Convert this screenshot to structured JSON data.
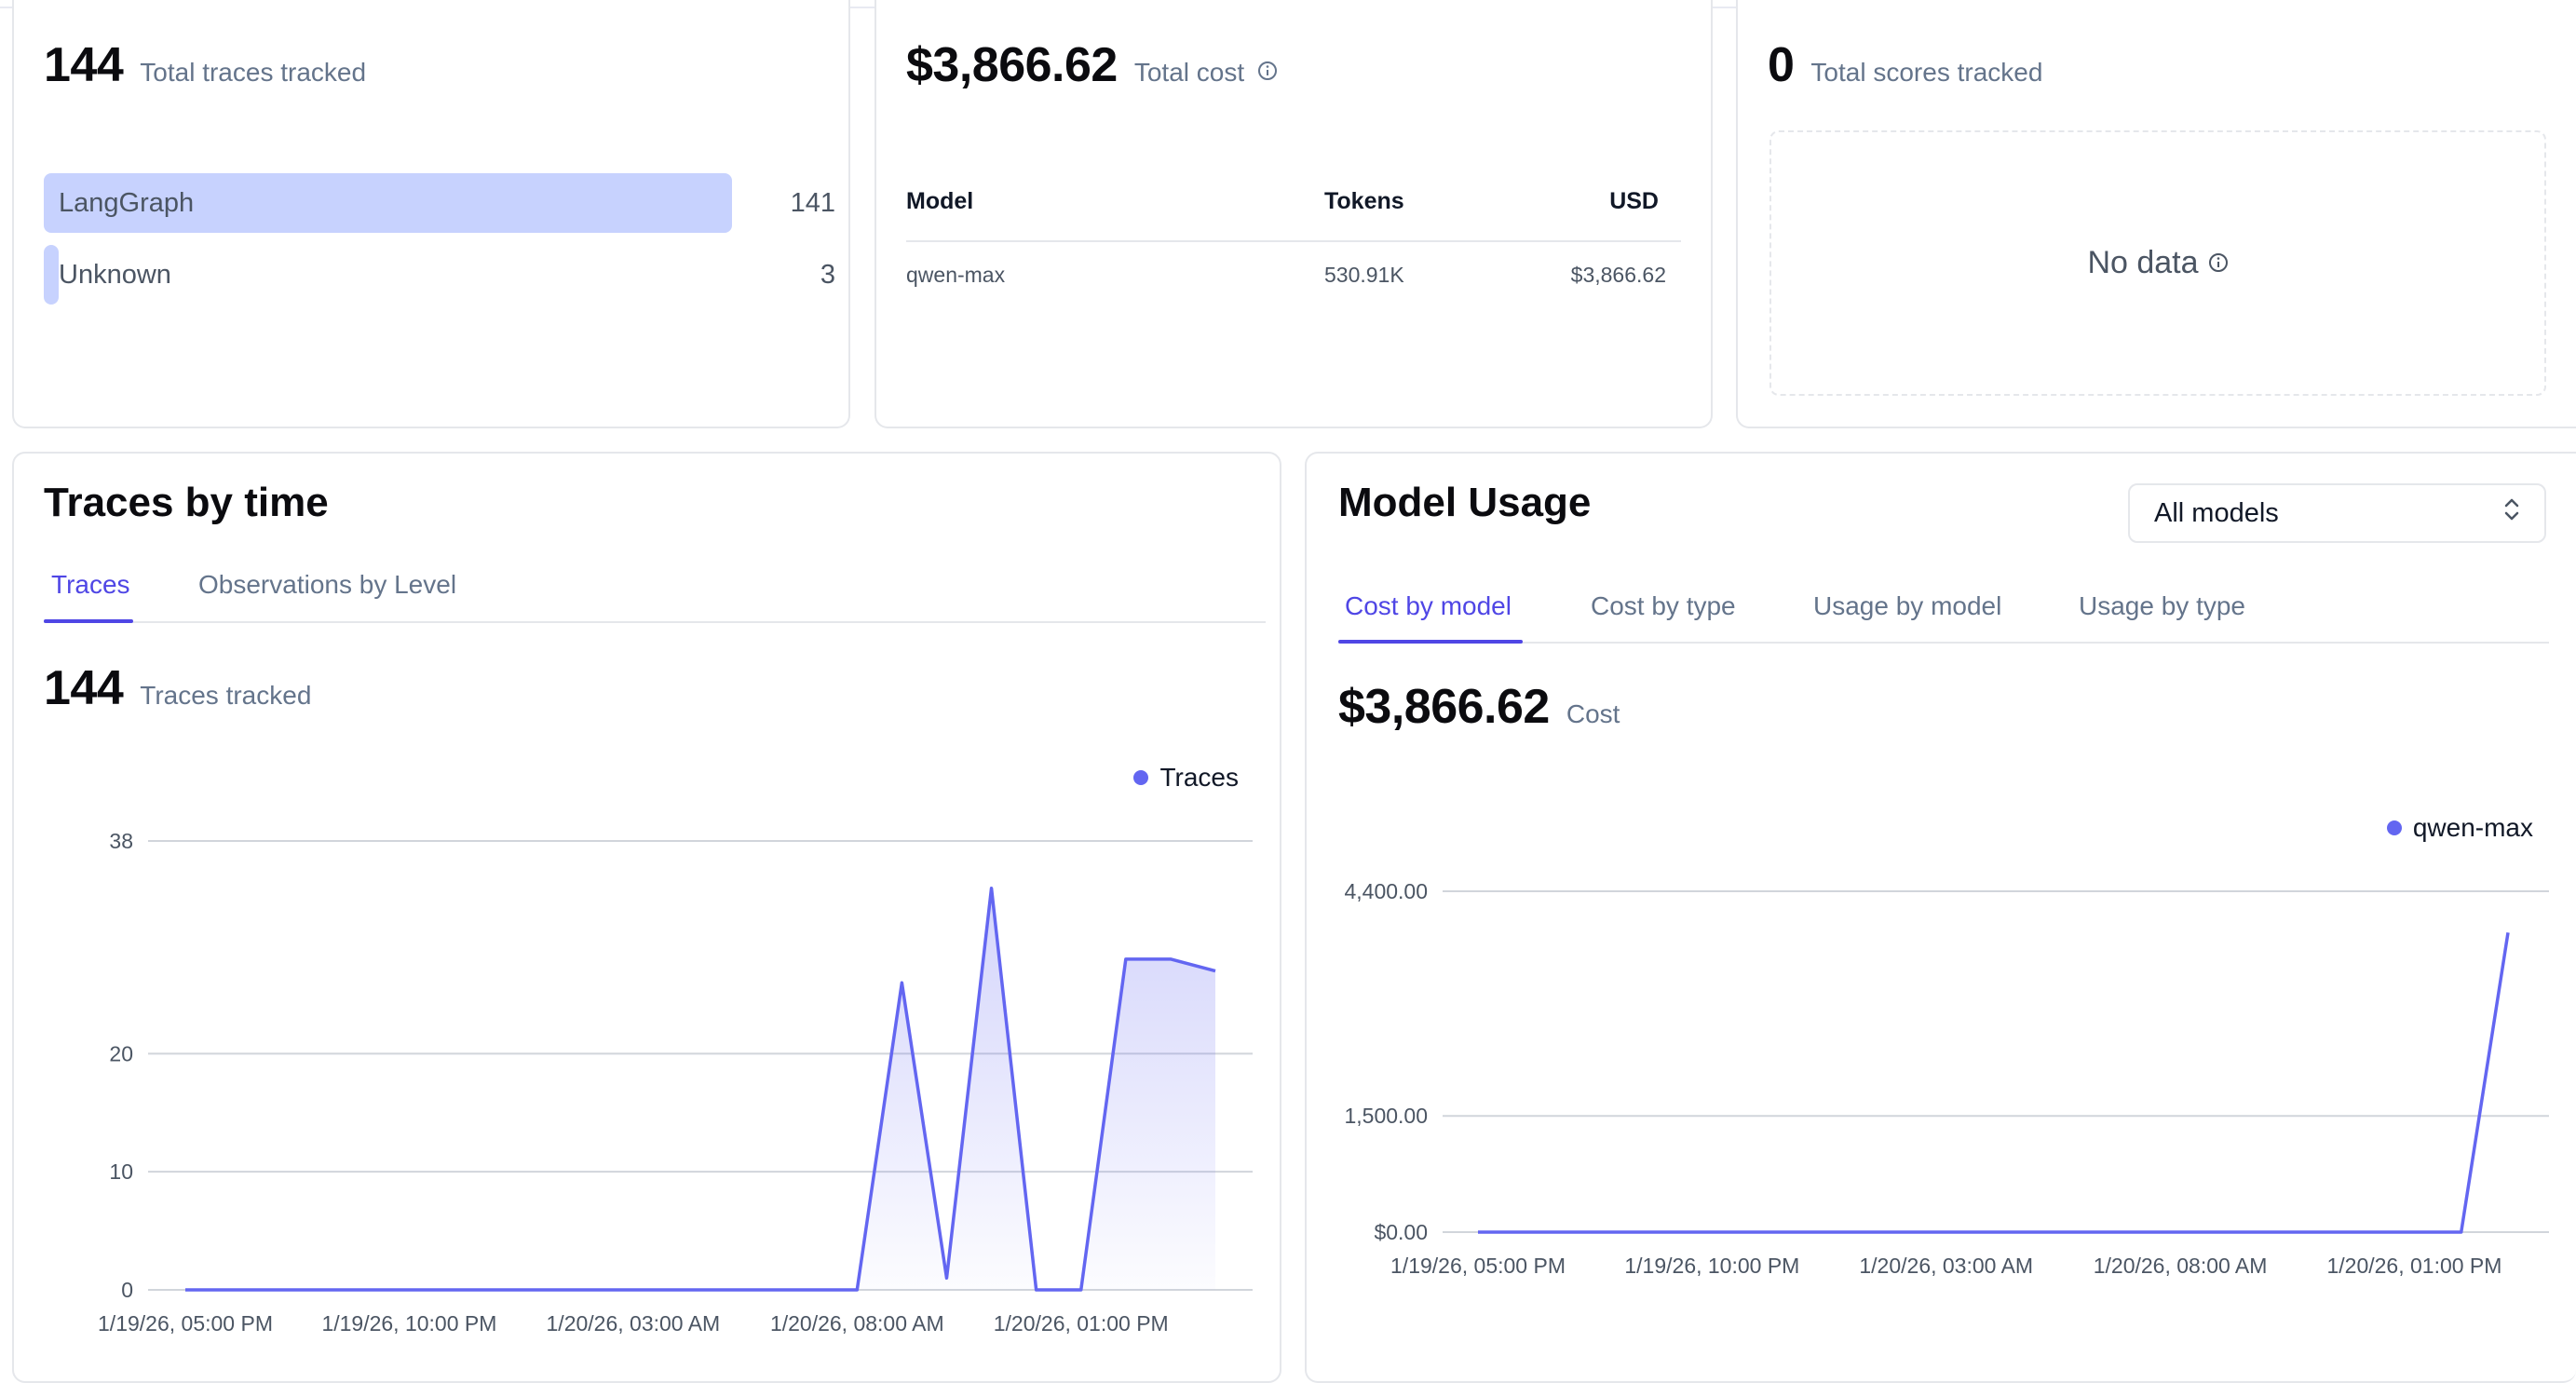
{
  "traces_summary": {
    "total": "144",
    "label": "Total traces tracked",
    "rows": [
      {
        "name": "LangGraph",
        "count": 141,
        "count_label": "141"
      },
      {
        "name": "Unknown",
        "count": 3,
        "count_label": "3"
      }
    ]
  },
  "cost_summary": {
    "total": "$3,866.62",
    "label": "Total cost",
    "columns": [
      "Model",
      "Tokens",
      "USD"
    ],
    "rows": [
      {
        "model": "qwen-max",
        "tokens": "530.91K",
        "usd": "$3,866.62"
      }
    ]
  },
  "scores_summary": {
    "total": "0",
    "label": "Total scores tracked",
    "empty_text": "No data"
  },
  "traces_by_time": {
    "title": "Traces by time",
    "tabs": [
      "Traces",
      "Observations by Level"
    ],
    "active_tab": 0,
    "total": "144",
    "total_label": "Traces tracked"
  },
  "model_usage": {
    "title": "Model Usage",
    "select_value": "All models",
    "tabs": [
      "Cost by model",
      "Cost by type",
      "Usage by model",
      "Usage by type"
    ],
    "active_tab": 0,
    "total": "$3,866.62",
    "total_label": "Cost"
  },
  "colors": {
    "accent": "#4f46e5",
    "series": "#6366f1",
    "bar": "#c7d2fe"
  },
  "chart_data": [
    {
      "type": "area",
      "title": "",
      "x_ticks": [
        "1/19/26, 05:00 PM",
        "1/19/26, 10:00 PM",
        "1/20/26, 03:00 AM",
        "1/20/26, 08:00 AM",
        "1/20/26, 01:00 PM"
      ],
      "y_ticks": [
        "0",
        "10",
        "20",
        "38"
      ],
      "y_tick_values": [
        0,
        10,
        20,
        38
      ],
      "ylim": [
        0,
        38
      ],
      "x_start": "1/19/26, 05:00 PM",
      "x_end": "1/20/26, 04:00 PM",
      "series": [
        {
          "name": "Traces",
          "color": "#6366f1",
          "times": [
            "1/19/26, 05:00 PM",
            "1/19/26, 06:00 PM",
            "1/19/26, 07:00 PM",
            "1/19/26, 08:00 PM",
            "1/19/26, 09:00 PM",
            "1/19/26, 10:00 PM",
            "1/19/26, 11:00 PM",
            "1/20/26, 12:00 AM",
            "1/20/26, 01:00 AM",
            "1/20/26, 02:00 AM",
            "1/20/26, 03:00 AM",
            "1/20/26, 04:00 AM",
            "1/20/26, 05:00 AM",
            "1/20/26, 06:00 AM",
            "1/20/26, 07:00 AM",
            "1/20/26, 08:00 AM",
            "1/20/26, 09:00 AM",
            "1/20/26, 10:00 AM",
            "1/20/26, 11:00 AM",
            "1/20/26, 12:00 PM",
            "1/20/26, 01:00 PM",
            "1/20/26, 02:00 PM",
            "1/20/26, 03:00 PM",
            "1/20/26, 04:00 PM"
          ],
          "values": [
            0,
            0,
            0,
            0,
            0,
            0,
            0,
            0,
            0,
            0,
            0,
            0,
            0,
            0,
            0,
            0,
            26,
            1,
            34,
            0,
            0,
            28,
            28,
            27
          ]
        }
      ]
    },
    {
      "type": "line",
      "title": "",
      "x_ticks": [
        "1/19/26, 05:00 PM",
        "1/19/26, 10:00 PM",
        "1/20/26, 03:00 AM",
        "1/20/26, 08:00 AM",
        "1/20/26, 01:00 PM"
      ],
      "y_ticks": [
        "$0.00",
        "1,500.00",
        "4,400.00"
      ],
      "y_tick_values": [
        0,
        1500,
        4400
      ],
      "ylim": [
        0,
        4400
      ],
      "x_start": "1/19/26, 05:00 PM",
      "x_end": "1/20/26, 03:00 PM",
      "series": [
        {
          "name": "qwen-max",
          "color": "#6366f1",
          "times": [
            "1/19/26, 05:00 PM",
            "1/19/26, 06:00 PM",
            "1/19/26, 07:00 PM",
            "1/19/26, 08:00 PM",
            "1/19/26, 09:00 PM",
            "1/19/26, 10:00 PM",
            "1/19/26, 11:00 PM",
            "1/20/26, 12:00 AM",
            "1/20/26, 01:00 AM",
            "1/20/26, 02:00 AM",
            "1/20/26, 03:00 AM",
            "1/20/26, 04:00 AM",
            "1/20/26, 05:00 AM",
            "1/20/26, 06:00 AM",
            "1/20/26, 07:00 AM",
            "1/20/26, 08:00 AM",
            "1/20/26, 09:00 AM",
            "1/20/26, 10:00 AM",
            "1/20/26, 11:00 AM",
            "1/20/26, 12:00 PM",
            "1/20/26, 01:00 PM",
            "1/20/26, 02:00 PM",
            "1/20/26, 03:00 PM"
          ],
          "values": [
            0,
            0,
            0,
            0,
            0,
            0,
            0,
            0,
            0,
            0,
            0,
            0,
            0,
            0,
            0,
            0,
            0,
            0,
            0,
            0,
            0,
            0,
            3866.62
          ]
        }
      ]
    }
  ]
}
